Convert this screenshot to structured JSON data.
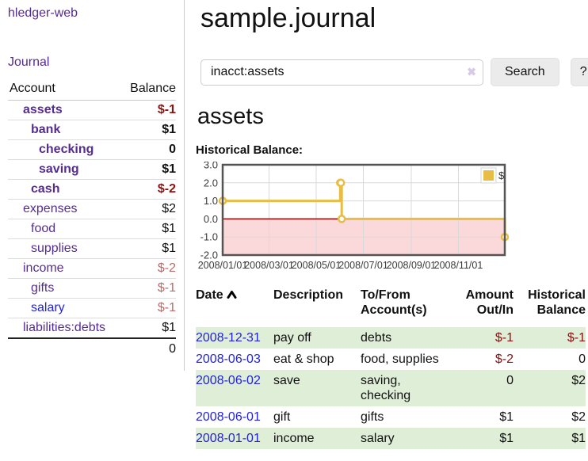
{
  "colors": {
    "purple": "#552d90",
    "blue": "#2222dd",
    "neg": "#8b1212",
    "neg-muted": "#b96a6a",
    "stripe-green": "#dfeed7",
    "gold": "#e8bc45"
  },
  "sidebar": {
    "app_title": "hledger-web",
    "journal_label": "Journal",
    "accounts_header": {
      "account": "Account",
      "balance": "Balance"
    },
    "accounts": [
      {
        "name": "assets",
        "balance": "$-1",
        "depth": 0,
        "in_filter": true,
        "balance_style": "neg",
        "link_style": "purple"
      },
      {
        "name": "bank",
        "balance": "$1",
        "depth": 1,
        "in_filter": true,
        "balance_style": "pos",
        "link_style": "purple"
      },
      {
        "name": "checking",
        "balance": "0",
        "depth": 2,
        "in_filter": true,
        "balance_style": "pos",
        "link_style": "purple"
      },
      {
        "name": "saving",
        "balance": "$1",
        "depth": 2,
        "in_filter": true,
        "balance_style": "pos",
        "link_style": "purple"
      },
      {
        "name": "cash",
        "balance": "$-2",
        "depth": 1,
        "in_filter": true,
        "balance_style": "neg",
        "link_style": "purple"
      },
      {
        "name": "expenses",
        "balance": "$2",
        "depth": 0,
        "in_filter": false,
        "balance_style": "pos",
        "link_style": "purple"
      },
      {
        "name": "food",
        "balance": "$1",
        "depth": 1,
        "in_filter": false,
        "balance_style": "pos",
        "link_style": "purple"
      },
      {
        "name": "supplies",
        "balance": "$1",
        "depth": 1,
        "in_filter": false,
        "balance_style": "pos",
        "link_style": "purple"
      },
      {
        "name": "income",
        "balance": "$-2",
        "depth": 0,
        "in_filter": false,
        "balance_style": "neg-muted",
        "link_style": "purple"
      },
      {
        "name": "gifts",
        "balance": "$-1",
        "depth": 1,
        "in_filter": false,
        "balance_style": "neg-muted",
        "link_style": "purple"
      },
      {
        "name": "salary",
        "balance": "$-1",
        "depth": 1,
        "in_filter": false,
        "balance_style": "neg-muted",
        "link_style": "blue"
      },
      {
        "name": "liabilities:debts",
        "balance": "$1",
        "depth": 0,
        "in_filter": false,
        "balance_style": "pos",
        "link_style": "purple"
      }
    ],
    "total": "0"
  },
  "main": {
    "title": "sample.journal",
    "search": {
      "value": "inacct:assets",
      "clear_icon": "✖",
      "button_label": "Search",
      "help_label": "?"
    },
    "account_heading": "assets"
  },
  "chart_data": {
    "type": "line",
    "step": true,
    "title": "Historical Balance:",
    "series": [
      {
        "name": "$",
        "color": "#e8bc45",
        "points": [
          [
            "2008-01-01",
            1.0
          ],
          [
            "2008-06-01",
            2.0
          ],
          [
            "2008-06-02",
            2.0
          ],
          [
            "2008-06-03",
            0.0
          ],
          [
            "2008-12-31",
            -1.0
          ]
        ]
      }
    ],
    "x_range": [
      "2008-01-01",
      "2008-12-31"
    ],
    "x_tick_dates": [
      "2008-01-01",
      "2008-03-01",
      "2008-05-01",
      "2008-07-01",
      "2008-09-01",
      "2008-11-01"
    ],
    "x_tick_labels": [
      "2008/01/01",
      "2008/03/01",
      "2008/05/01",
      "2008/07/01",
      "2008/09/01",
      "2008/11/01"
    ],
    "y_ticks": [
      "3.0",
      "2.0",
      "1.0",
      "0.0",
      "-1.0",
      "-2.0"
    ],
    "ylim": [
      -2,
      3
    ],
    "grid": true,
    "legend": {
      "label": "$",
      "position": "top-right"
    },
    "negative_region": {
      "from": 0,
      "to": -2,
      "color": "#fbd9db"
    },
    "zero_line_color": "#990000",
    "grid_color": "#d9d9d9",
    "plot_border_color": "#545454"
  },
  "register": {
    "headers": {
      "date": "Date",
      "description": "Description",
      "tofrom": "To/From Account(s)",
      "amount": "Amount Out/In",
      "balance": "Historical Balance"
    },
    "sort": {
      "column": "date",
      "direction": "ascending"
    },
    "rows": [
      {
        "date": "2008-12-31",
        "description": "pay off",
        "accounts": "debts",
        "amount": "$-1",
        "amount_style": "neg",
        "balance": "$-1",
        "balance_style": "neg"
      },
      {
        "date": "2008-06-03",
        "description": "eat & shop",
        "accounts": "food, supplies",
        "amount": "$-2",
        "amount_style": "neg",
        "balance": "0",
        "balance_style": "pos"
      },
      {
        "date": "2008-06-02",
        "description": "save",
        "accounts": "saving, checking",
        "amount": "0",
        "amount_style": "pos",
        "balance": "$2",
        "balance_style": "pos"
      },
      {
        "date": "2008-06-01",
        "description": "gift",
        "accounts": "gifts",
        "amount": "$1",
        "amount_style": "pos",
        "balance": "$2",
        "balance_style": "pos"
      },
      {
        "date": "2008-01-01",
        "description": "income",
        "accounts": "salary",
        "amount": "$1",
        "amount_style": "pos",
        "balance": "$1",
        "balance_style": "pos"
      }
    ]
  }
}
